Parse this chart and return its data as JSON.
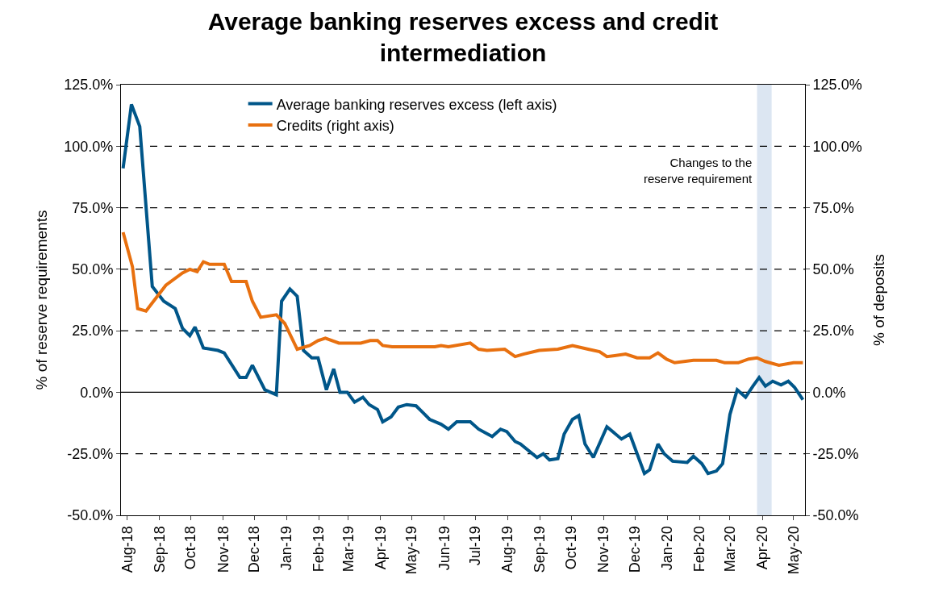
{
  "chart_data": {
    "type": "line",
    "title": "Average banking reserves excess and credit intermediation",
    "ylabel": "% of reserve requirements",
    "y2label": "% of deposits",
    "xlim": [
      "2018-07-26",
      "2020-05-12"
    ],
    "xticks": [
      {
        "value": "2018-08-01",
        "label": "Aug-18"
      },
      {
        "value": "2018-09-01",
        "label": "Sep-18"
      },
      {
        "value": "2018-10-01",
        "label": "Oct-18"
      },
      {
        "value": "2018-11-01",
        "label": "Nov-18"
      },
      {
        "value": "2018-12-01",
        "label": "Dec-18"
      },
      {
        "value": "2019-01-01",
        "label": "Jan-19"
      },
      {
        "value": "2019-02-01",
        "label": "Feb-19"
      },
      {
        "value": "2019-03-01",
        "label": "Mar-19"
      },
      {
        "value": "2019-04-01",
        "label": "Apr-19"
      },
      {
        "value": "2019-05-01",
        "label": "May-19"
      },
      {
        "value": "2019-06-01",
        "label": "Jun-19"
      },
      {
        "value": "2019-07-01",
        "label": "Jul-19"
      },
      {
        "value": "2019-08-01",
        "label": "Aug-19"
      },
      {
        "value": "2019-09-01",
        "label": "Sep-19"
      },
      {
        "value": "2019-10-01",
        "label": "Oct-19"
      },
      {
        "value": "2019-11-01",
        "label": "Nov-19"
      },
      {
        "value": "2019-12-01",
        "label": "Dec-19"
      },
      {
        "value": "2020-01-01",
        "label": "Jan-20"
      },
      {
        "value": "2020-02-01",
        "label": "Feb-20"
      },
      {
        "value": "2020-03-01",
        "label": "Mar-20"
      },
      {
        "value": "2020-04-01",
        "label": "Apr-20"
      },
      {
        "value": "2020-05-01",
        "label": "May-20"
      }
    ],
    "ylim": [
      -50,
      125
    ],
    "yticks": [
      {
        "value": -50,
        "label": "-50.0%"
      },
      {
        "value": -25,
        "label": "-25.0%"
      },
      {
        "value": 0,
        "label": "0.0%"
      },
      {
        "value": 25,
        "label": "25.0%"
      },
      {
        "value": 50,
        "label": "50.0%"
      },
      {
        "value": 75,
        "label": "75.0%"
      },
      {
        "value": 100,
        "label": "100.0%"
      },
      {
        "value": 125,
        "label": "125.0%"
      }
    ],
    "y2lim": [
      -50,
      125
    ],
    "y2ticks": [
      {
        "value": -50,
        "label": "-50.0%"
      },
      {
        "value": -25,
        "label": "-25.0%"
      },
      {
        "value": 0,
        "label": "0.0%"
      },
      {
        "value": 25,
        "label": "25.0%"
      },
      {
        "value": 50,
        "label": "50.0%"
      },
      {
        "value": 75,
        "label": "75.0%"
      },
      {
        "value": 100,
        "label": "100.0%"
      },
      {
        "value": 125,
        "label": "125.0%"
      }
    ],
    "grid": "y",
    "legend": "top",
    "line_style": "solid",
    "bands": [
      {
        "axis": "x",
        "from": "2020-03-27",
        "to": "2020-04-10",
        "label": "Changes to the\nreserve requirement",
        "color": "#dce6f2"
      }
    ],
    "series": [
      {
        "name": "Average banking reserves excess (left axis)",
        "color": "#005689",
        "axis": "y",
        "x": [
          "2018-07-28",
          "2018-08-05",
          "2018-08-13",
          "2018-08-25",
          "2018-09-05",
          "2018-09-16",
          "2018-09-23",
          "2018-09-30",
          "2018-10-05",
          "2018-10-13",
          "2018-10-27",
          "2018-11-02",
          "2018-11-17",
          "2018-11-23",
          "2018-11-29",
          "2018-12-11",
          "2018-12-22",
          "2018-12-27",
          "2019-01-04",
          "2019-01-11",
          "2019-01-17",
          "2019-01-25",
          "2019-01-31",
          "2019-02-08",
          "2019-02-15",
          "2019-02-21",
          "2019-02-28",
          "2019-03-07",
          "2019-03-15",
          "2019-03-21",
          "2019-03-29",
          "2019-04-03",
          "2019-04-11",
          "2019-04-18",
          "2019-04-26",
          "2019-05-05",
          "2019-05-11",
          "2019-05-18",
          "2019-05-29",
          "2019-06-05",
          "2019-06-13",
          "2019-06-26",
          "2019-07-04",
          "2019-07-17",
          "2019-07-25",
          "2019-07-31",
          "2019-08-08",
          "2019-08-13",
          "2019-08-29",
          "2019-09-04",
          "2019-09-10",
          "2019-09-18",
          "2019-09-24",
          "2019-10-02",
          "2019-10-08",
          "2019-10-14",
          "2019-10-22",
          "2019-11-04",
          "2019-11-18",
          "2019-11-26",
          "2019-12-10",
          "2019-12-15",
          "2019-12-23",
          "2019-12-29",
          "2020-01-06",
          "2020-01-20",
          "2020-01-26",
          "2020-02-03",
          "2020-02-09",
          "2020-02-17",
          "2020-02-23",
          "2020-03-01",
          "2020-03-08",
          "2020-03-16",
          "2020-03-23",
          "2020-03-29",
          "2020-04-04",
          "2020-04-11",
          "2020-04-19",
          "2020-04-26",
          "2020-05-02",
          "2020-05-10"
        ],
        "values": [
          91,
          117,
          108,
          43,
          37,
          34,
          26,
          23,
          26.5,
          18,
          17,
          16,
          6,
          6,
          11,
          1,
          -1,
          37,
          42,
          39,
          17,
          14,
          14,
          1,
          9.5,
          0,
          0,
          -4,
          -2,
          -5,
          -7,
          -12,
          -10,
          -6,
          -5,
          -5.5,
          -8,
          -11,
          -13,
          -15,
          -12,
          -12,
          -15,
          -18,
          -15,
          -16,
          -20,
          -21,
          -26.5,
          -25,
          -27.5,
          -27,
          -17,
          -11,
          -9.5,
          -21,
          -26.5,
          -14,
          -19,
          -17,
          -33,
          -31.5,
          -21,
          -25,
          -28,
          -28.5,
          -26,
          -29,
          -33,
          -32,
          -29,
          -9,
          1,
          -2,
          2.5,
          6,
          2.5,
          4.5,
          3,
          4.5,
          2,
          -3
        ]
      },
      {
        "name": "Credits (right axis)",
        "color": "#e8700f",
        "axis": "y2",
        "x": [
          "2018-07-28",
          "2018-08-06",
          "2018-08-11",
          "2018-08-19",
          "2018-08-28",
          "2018-09-07",
          "2018-09-23",
          "2018-09-30",
          "2018-10-07",
          "2018-10-13",
          "2018-10-19",
          "2018-11-02",
          "2018-11-09",
          "2018-11-23",
          "2018-11-29",
          "2018-12-07",
          "2018-12-22",
          "2018-12-30",
          "2019-01-11",
          "2019-01-23",
          "2019-01-31",
          "2019-02-07",
          "2019-02-20",
          "2019-03-13",
          "2019-03-22",
          "2019-03-29",
          "2019-04-03",
          "2019-04-12",
          "2019-05-23",
          "2019-05-29",
          "2019-06-05",
          "2019-06-26",
          "2019-07-04",
          "2019-07-12",
          "2019-07-29",
          "2019-08-08",
          "2019-08-16",
          "2019-08-31",
          "2019-09-18",
          "2019-10-02",
          "2019-10-17",
          "2019-10-28",
          "2019-11-04",
          "2019-11-22",
          "2019-12-03",
          "2019-12-15",
          "2019-12-23",
          "2019-12-31",
          "2020-01-08",
          "2020-01-26",
          "2020-02-17",
          "2020-02-25",
          "2020-03-09",
          "2020-03-19",
          "2020-03-27",
          "2020-04-04",
          "2020-04-17",
          "2020-05-01",
          "2020-05-10"
        ],
        "values": [
          65,
          51,
          34,
          33,
          38,
          43.5,
          48.5,
          50,
          49,
          53,
          52,
          52,
          45,
          45,
          37,
          30.5,
          31.5,
          28,
          17.5,
          19,
          21,
          22,
          20,
          20,
          21,
          21,
          19,
          18.5,
          18.5,
          19,
          18.5,
          20,
          17.5,
          17,
          17.5,
          14.5,
          15.5,
          17,
          17.5,
          19,
          17.5,
          16.5,
          14.5,
          15.5,
          14,
          14,
          16,
          13.5,
          12,
          13,
          13,
          12,
          12,
          13.5,
          14,
          12.5,
          11,
          12,
          12
        ]
      }
    ]
  }
}
